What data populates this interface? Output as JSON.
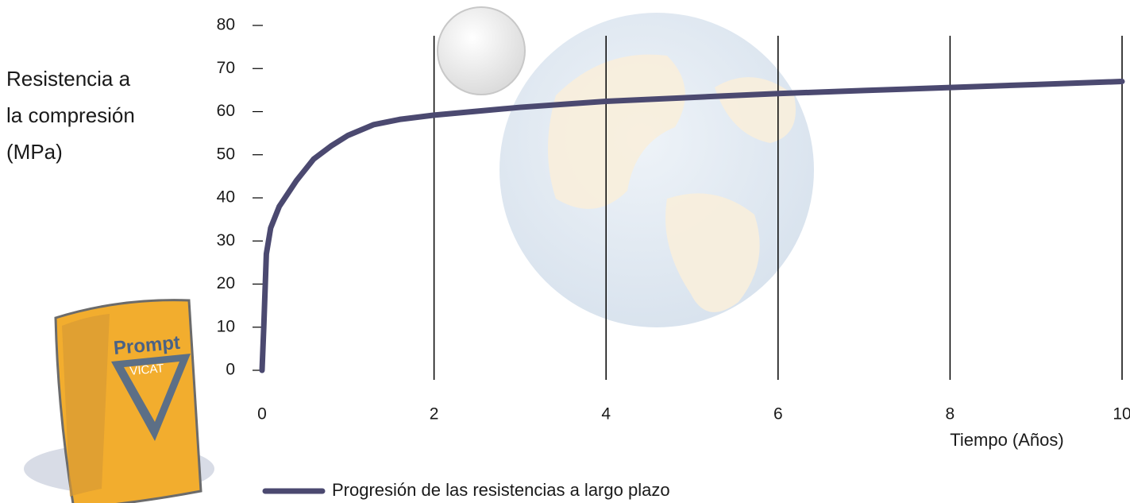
{
  "chart_data": {
    "type": "line",
    "y_label_lines": [
      "Resistencia a",
      "la compresión",
      "(MPa)"
    ],
    "x_label": "Tiempo (Años)",
    "logo": {
      "text": "Prompt",
      "subtext": "VICAT"
    },
    "x": [
      0,
      0.02,
      0.05,
      0.1,
      0.2,
      0.4,
      0.6,
      0.8,
      1,
      1.3,
      1.6,
      2,
      3,
      4,
      5,
      6,
      7,
      8,
      9,
      10
    ],
    "series": [
      {
        "name": "Progresión de las resistencias a largo plazo",
        "color": "#4b4970",
        "values": [
          0,
          10,
          27,
          33,
          38,
          44,
          49,
          52,
          54.5,
          57,
          58.2,
          59.2,
          61,
          62.4,
          63.3,
          64.2,
          64.9,
          65.6,
          66.3,
          67
        ]
      }
    ],
    "xlim": [
      0,
      10
    ],
    "xticks": [
      0,
      2,
      4,
      6,
      8,
      10
    ],
    "ylim": [
      0,
      80
    ],
    "yticks": [
      0,
      10,
      20,
      30,
      40,
      50,
      60,
      70,
      80
    ],
    "grid": true
  }
}
